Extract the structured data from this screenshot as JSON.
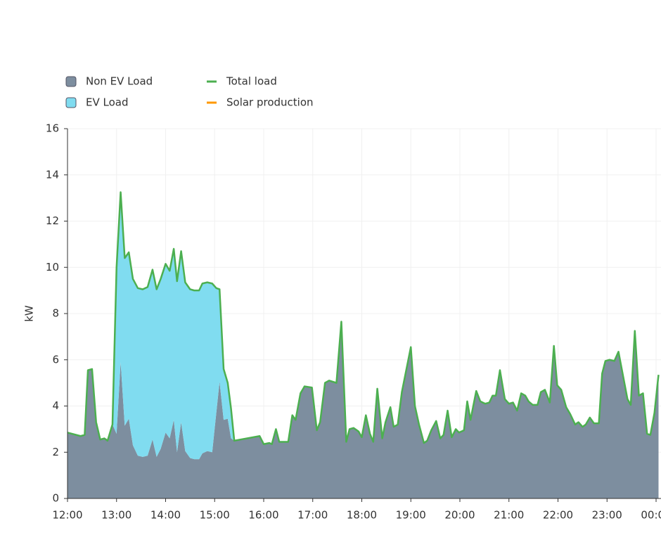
{
  "chart_data": {
    "type": "area",
    "y_label": "kW",
    "x": [
      "12:00",
      "12:16",
      "12:21",
      "12:25",
      "12:30",
      "12:35",
      "12:40",
      "12:45",
      "12:49",
      "12:55",
      "13:00",
      "13:05",
      "13:10",
      "13:15",
      "13:20",
      "13:26",
      "13:32",
      "13:38",
      "13:44",
      "13:49",
      "13:54",
      "14:00",
      "14:05",
      "14:10",
      "14:14",
      "14:19",
      "14:24",
      "14:30",
      "14:35",
      "14:41",
      "14:45",
      "14:51",
      "14:57",
      "15:02",
      "15:06",
      "15:11",
      "15:16",
      "15:20",
      "15:24",
      "15:55",
      "16:00",
      "16:07",
      "16:10",
      "16:15",
      "16:19",
      "16:30",
      "16:35",
      "16:39",
      "16:45",
      "16:50",
      "16:59",
      "17:05",
      "17:09",
      "17:15",
      "17:20",
      "17:29",
      "17:35",
      "17:41",
      "17:45",
      "17:50",
      "17:56",
      "18:00",
      "18:05",
      "18:10",
      "18:14",
      "18:19",
      "18:25",
      "18:29",
      "18:35",
      "18:39",
      "18:44",
      "18:49",
      "19:00",
      "19:05",
      "19:10",
      "19:16",
      "19:20",
      "19:25",
      "19:31",
      "19:36",
      "19:40",
      "19:45",
      "19:50",
      "19:55",
      "19:59",
      "20:05",
      "20:09",
      "20:13",
      "20:20",
      "20:25",
      "20:31",
      "20:36",
      "20:40",
      "20:44",
      "20:49",
      "20:55",
      "21:00",
      "21:05",
      "21:10",
      "21:15",
      "21:20",
      "21:24",
      "21:29",
      "21:35",
      "21:39",
      "21:44",
      "21:50",
      "21:55",
      "21:59",
      "22:04",
      "22:10",
      "22:15",
      "22:21",
      "22:25",
      "22:30",
      "22:34",
      "22:39",
      "22:44",
      "22:50",
      "22:54",
      "22:58",
      "23:03",
      "23:09",
      "23:14",
      "23:25",
      "23:29",
      "23:34",
      "23:39",
      "23:44",
      "23:49",
      "23:53",
      "23:58",
      "00:03"
    ],
    "series": [
      {
        "name": "Non EV Load",
        "kind": "area",
        "color": "#7d8e9f",
        "values": [
          2.85,
          2.7,
          2.75,
          5.55,
          5.6,
          3.3,
          2.55,
          2.6,
          2.5,
          3.2,
          2.8,
          5.9,
          3.15,
          3.45,
          2.3,
          1.85,
          1.8,
          1.85,
          2.55,
          1.8,
          2.15,
          2.85,
          2.6,
          3.4,
          2.0,
          3.3,
          2.05,
          1.75,
          1.7,
          1.7,
          1.95,
          2.05,
          2.0,
          3.7,
          5.05,
          3.4,
          3.45,
          2.6,
          2.5,
          2.7,
          2.35,
          2.4,
          2.35,
          3.0,
          2.45,
          2.45,
          3.6,
          3.4,
          4.55,
          4.85,
          4.8,
          2.95,
          3.3,
          5.0,
          5.1,
          5.0,
          7.65,
          2.45,
          3.0,
          3.05,
          2.9,
          2.65,
          3.6,
          2.8,
          2.45,
          4.75,
          2.6,
          3.3,
          3.95,
          3.1,
          3.2,
          4.6,
          6.55,
          4.0,
          3.2,
          2.4,
          2.5,
          2.95,
          3.35,
          2.6,
          2.75,
          3.8,
          2.65,
          3.0,
          2.85,
          2.95,
          4.2,
          3.4,
          4.65,
          4.2,
          4.1,
          4.15,
          4.45,
          4.45,
          5.55,
          4.3,
          4.1,
          4.15,
          3.8,
          4.55,
          4.45,
          4.2,
          4.05,
          4.05,
          4.6,
          4.7,
          4.15,
          6.6,
          4.9,
          4.7,
          3.95,
          3.65,
          3.2,
          3.3,
          3.1,
          3.2,
          3.5,
          3.25,
          3.25,
          5.4,
          5.95,
          6.0,
          5.95,
          6.35,
          4.3,
          4.05,
          7.25,
          4.45,
          4.55,
          2.8,
          2.75,
          3.7,
          5.35
        ]
      },
      {
        "name": "EV Load",
        "kind": "area",
        "color": "#80dcf0",
        "values": [
          0,
          0,
          0,
          0,
          0,
          0,
          0,
          0,
          0,
          0,
          7.2,
          7.35,
          7.25,
          7.2,
          7.2,
          7.25,
          7.25,
          7.3,
          7.35,
          7.25,
          7.35,
          7.3,
          7.25,
          7.4,
          7.4,
          7.4,
          7.3,
          7.3,
          7.3,
          7.3,
          7.35,
          7.3,
          7.3,
          5.4,
          4.0,
          2.2,
          1.55,
          1.3,
          0,
          0,
          0,
          0,
          0,
          0,
          0,
          0,
          0,
          0,
          0,
          0,
          0,
          0,
          0,
          0,
          0,
          0,
          0,
          0,
          0,
          0,
          0,
          0,
          0,
          0,
          0,
          0,
          0,
          0,
          0,
          0,
          0,
          0,
          0,
          0,
          0,
          0,
          0,
          0,
          0,
          0,
          0,
          0,
          0,
          0,
          0,
          0,
          0,
          0,
          0,
          0,
          0,
          0,
          0,
          0,
          0,
          0,
          0,
          0,
          0,
          0,
          0,
          0,
          0,
          0,
          0,
          0,
          0,
          0,
          0,
          0,
          0,
          0,
          0,
          0,
          0,
          0,
          0,
          0,
          0,
          0,
          0,
          0,
          0,
          0,
          0,
          0,
          0,
          0,
          0,
          0,
          0,
          0,
          0
        ]
      },
      {
        "name": "Total load",
        "kind": "line",
        "color": "#4caf50",
        "values": [
          2.85,
          2.7,
          2.75,
          5.55,
          5.6,
          3.3,
          2.55,
          2.6,
          2.5,
          3.2,
          10.0,
          13.25,
          10.4,
          10.65,
          9.5,
          9.1,
          9.05,
          9.15,
          9.9,
          9.05,
          9.5,
          10.15,
          9.85,
          10.8,
          9.4,
          10.7,
          9.35,
          9.05,
          9.0,
          9.0,
          9.3,
          9.35,
          9.3,
          9.1,
          9.05,
          5.6,
          5.0,
          3.9,
          2.5,
          2.7,
          2.35,
          2.4,
          2.35,
          3.0,
          2.45,
          2.45,
          3.6,
          3.4,
          4.55,
          4.85,
          4.8,
          2.95,
          3.3,
          5.0,
          5.1,
          5.0,
          7.65,
          2.45,
          3.0,
          3.05,
          2.9,
          2.65,
          3.6,
          2.8,
          2.45,
          4.75,
          2.6,
          3.3,
          3.95,
          3.1,
          3.2,
          4.6,
          6.55,
          4.0,
          3.2,
          2.4,
          2.5,
          2.95,
          3.35,
          2.6,
          2.75,
          3.8,
          2.65,
          3.0,
          2.85,
          2.95,
          4.2,
          3.4,
          4.65,
          4.2,
          4.1,
          4.15,
          4.45,
          4.45,
          5.55,
          4.3,
          4.1,
          4.15,
          3.8,
          4.55,
          4.45,
          4.2,
          4.05,
          4.05,
          4.6,
          4.7,
          4.15,
          6.6,
          4.9,
          4.7,
          3.95,
          3.65,
          3.2,
          3.3,
          3.1,
          3.2,
          3.5,
          3.25,
          3.25,
          5.4,
          5.95,
          6.0,
          5.95,
          6.35,
          4.3,
          4.05,
          7.25,
          4.45,
          4.55,
          2.8,
          2.75,
          3.7,
          5.35
        ]
      },
      {
        "name": "Solar production",
        "kind": "line",
        "color": "#ff9800",
        "values": [
          null,
          null,
          null,
          null,
          null,
          null,
          null,
          null,
          null,
          null,
          null,
          null,
          null,
          null,
          null,
          null,
          null,
          null,
          null,
          null,
          null,
          null,
          null,
          null,
          null,
          null,
          null,
          null,
          null,
          null,
          null,
          null,
          null,
          null,
          null,
          null,
          null,
          null,
          null,
          null,
          null,
          null,
          null,
          null,
          null,
          null,
          null,
          null,
          null,
          null,
          null,
          null,
          null,
          null,
          null,
          null,
          null,
          null,
          null,
          null,
          null,
          null,
          null,
          null,
          null,
          null,
          null,
          null,
          null,
          null,
          null,
          null,
          null,
          null,
          null,
          null,
          null,
          null,
          null,
          null,
          null,
          null,
          null,
          null,
          null,
          null,
          null,
          null,
          null,
          null,
          null,
          null,
          null,
          null,
          null,
          null,
          null,
          null,
          null,
          null,
          null,
          null,
          null,
          null,
          null,
          null,
          null,
          null,
          null,
          null,
          null,
          null,
          null,
          null,
          null,
          null,
          null,
          null,
          null,
          null,
          null,
          null,
          null,
          null,
          null,
          null,
          null,
          null,
          null,
          null,
          null,
          null,
          null
        ]
      }
    ],
    "xlim": [
      "12:00",
      "00:00"
    ],
    "xticks": [
      "12:00",
      "13:00",
      "14:00",
      "15:00",
      "16:00",
      "17:00",
      "18:00",
      "19:00",
      "20:00",
      "21:00",
      "22:00",
      "23:00",
      "00:00"
    ],
    "ylim": [
      0,
      16
    ],
    "yticks": [
      0,
      2,
      4,
      6,
      8,
      10,
      12,
      14,
      16
    ],
    "grid": true,
    "legend": "top-left"
  }
}
